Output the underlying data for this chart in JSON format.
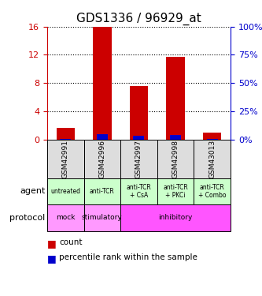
{
  "title": "GDS1336 / 96929_at",
  "samples": [
    "GSM42991",
    "GSM42996",
    "GSM42997",
    "GSM42998",
    "GSM43013"
  ],
  "count_values": [
    1.6,
    16.0,
    7.6,
    11.7,
    1.0
  ],
  "percentile_values": [
    0.5,
    4.4,
    3.2,
    3.9,
    0.7
  ],
  "ylim_left": [
    0,
    16
  ],
  "yticks_left": [
    0,
    4,
    8,
    12,
    16
  ],
  "yticks_right": [
    0,
    25,
    50,
    75,
    100
  ],
  "agent_labels": [
    "untreated",
    "anti-TCR",
    "anti-TCR\n+ CsA",
    "anti-TCR\n+ PKCi",
    "anti-TCR\n+ Combo"
  ],
  "protocol_labels": [
    "mock",
    "stimulatory",
    "inhibitory",
    "inhibitory",
    "inhibitory"
  ],
  "protocol_spans": [
    {
      "label": "mock",
      "start": 0,
      "end": 1,
      "color": "#ff99ff"
    },
    {
      "label": "stimulatory",
      "start": 1,
      "end": 2,
      "color": "#ff99ff"
    },
    {
      "label": "inhibitory",
      "start": 2,
      "end": 5,
      "color": "#ff55ff"
    }
  ],
  "agent_color": "#ccffcc",
  "protocol_mock_color": "#ff99ff",
  "protocol_stimulatory_color": "#ff99ff",
  "protocol_inhibitory_color": "#ff55ff",
  "sample_bg_color": "#dddddd",
  "bar_color_count": "#cc0000",
  "bar_color_percentile": "#0000cc",
  "bar_width": 0.5,
  "left_axis_color": "#cc0000",
  "right_axis_color": "#0000cc"
}
